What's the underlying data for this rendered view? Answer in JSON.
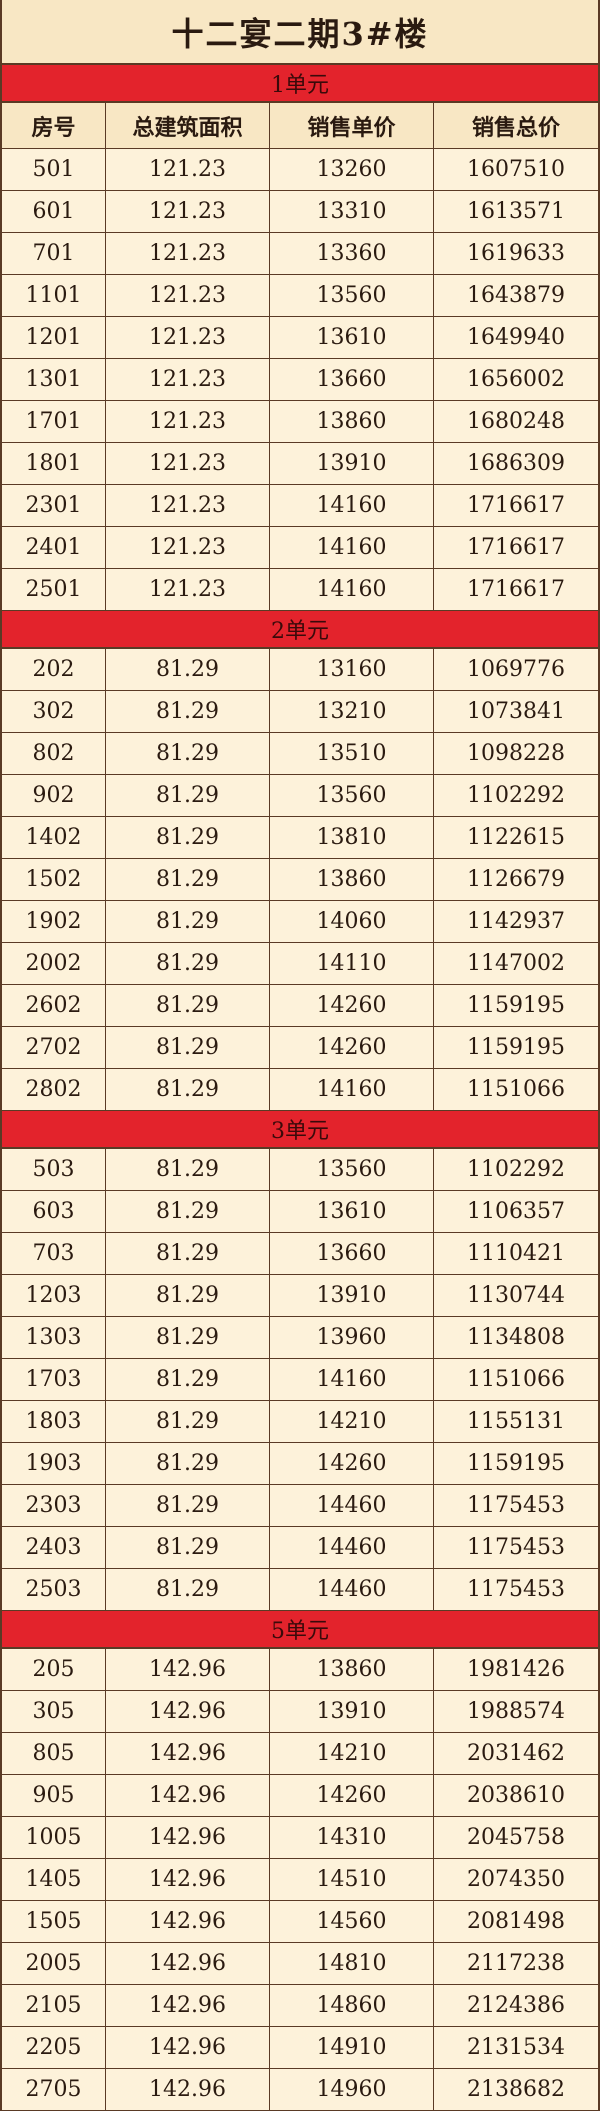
{
  "title": "十二宴二期3#楼",
  "header": [
    "房号",
    "总建筑面积",
    "销售单价",
    "销售总价"
  ],
  "sections": [
    {
      "label": "1单元",
      "rows": [
        [
          "501",
          "121.23",
          "13260",
          "1607510"
        ],
        [
          "601",
          "121.23",
          "13310",
          "1613571"
        ],
        [
          "701",
          "121.23",
          "13360",
          "1619633"
        ],
        [
          "1101",
          "121.23",
          "13560",
          "1643879"
        ],
        [
          "1201",
          "121.23",
          "13610",
          "1649940"
        ],
        [
          "1301",
          "121.23",
          "13660",
          "1656002"
        ],
        [
          "1701",
          "121.23",
          "13860",
          "1680248"
        ],
        [
          "1801",
          "121.23",
          "13910",
          "1686309"
        ],
        [
          "2301",
          "121.23",
          "14160",
          "1716617"
        ],
        [
          "2401",
          "121.23",
          "14160",
          "1716617"
        ],
        [
          "2501",
          "121.23",
          "14160",
          "1716617"
        ]
      ]
    },
    {
      "label": "2单元",
      "rows": [
        [
          "202",
          "81.29",
          "13160",
          "1069776"
        ],
        [
          "302",
          "81.29",
          "13210",
          "1073841"
        ],
        [
          "802",
          "81.29",
          "13510",
          "1098228"
        ],
        [
          "902",
          "81.29",
          "13560",
          "1102292"
        ],
        [
          "1402",
          "81.29",
          "13810",
          "1122615"
        ],
        [
          "1502",
          "81.29",
          "13860",
          "1126679"
        ],
        [
          "1902",
          "81.29",
          "14060",
          "1142937"
        ],
        [
          "2002",
          "81.29",
          "14110",
          "1147002"
        ],
        [
          "2602",
          "81.29",
          "14260",
          "1159195"
        ],
        [
          "2702",
          "81.29",
          "14260",
          "1159195"
        ],
        [
          "2802",
          "81.29",
          "14160",
          "1151066"
        ]
      ]
    },
    {
      "label": "3单元",
      "rows": [
        [
          "503",
          "81.29",
          "13560",
          "1102292"
        ],
        [
          "603",
          "81.29",
          "13610",
          "1106357"
        ],
        [
          "703",
          "81.29",
          "13660",
          "1110421"
        ],
        [
          "1203",
          "81.29",
          "13910",
          "1130744"
        ],
        [
          "1303",
          "81.29",
          "13960",
          "1134808"
        ],
        [
          "1703",
          "81.29",
          "14160",
          "1151066"
        ],
        [
          "1803",
          "81.29",
          "14210",
          "1155131"
        ],
        [
          "1903",
          "81.29",
          "14260",
          "1159195"
        ],
        [
          "2303",
          "81.29",
          "14460",
          "1175453"
        ],
        [
          "2403",
          "81.29",
          "14460",
          "1175453"
        ],
        [
          "2503",
          "81.29",
          "14460",
          "1175453"
        ]
      ]
    },
    {
      "label": "5单元",
      "rows": [
        [
          "205",
          "142.96",
          "13860",
          "1981426"
        ],
        [
          "305",
          "142.96",
          "13910",
          "1988574"
        ],
        [
          "805",
          "142.96",
          "14210",
          "2031462"
        ],
        [
          "905",
          "142.96",
          "14260",
          "2038610"
        ],
        [
          "1005",
          "142.96",
          "14310",
          "2045758"
        ],
        [
          "1405",
          "142.96",
          "14510",
          "2074350"
        ],
        [
          "1505",
          "142.96",
          "14560",
          "2081498"
        ],
        [
          "2005",
          "142.96",
          "14810",
          "2117238"
        ],
        [
          "2105",
          "142.96",
          "14860",
          "2124386"
        ],
        [
          "2205",
          "142.96",
          "14910",
          "2131534"
        ],
        [
          "2705",
          "142.96",
          "14960",
          "2138682"
        ]
      ]
    }
  ]
}
